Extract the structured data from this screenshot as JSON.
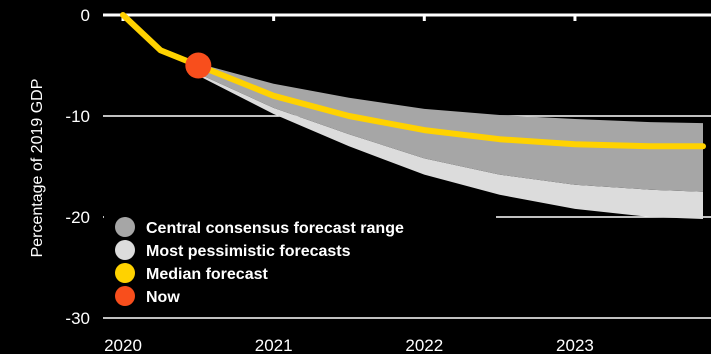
{
  "chart_data": {
    "type": "area",
    "ylabel": "Percentage of 2019 GDP",
    "ylim": [
      -30,
      0
    ],
    "y_ticks": [
      0,
      -10,
      -20,
      -30
    ],
    "xlim": [
      2020,
      2023.85
    ],
    "x_ticks": [
      2020,
      2021,
      2022,
      2023
    ],
    "x_tick_labels": [
      "2020",
      "2021",
      "2022",
      "2023"
    ],
    "grid": true,
    "legend_placement": "lower-left",
    "series": [
      {
        "name": "Central consensus forecast range",
        "color": "#a6a6a6",
        "x": [
          2020.5,
          2021,
          2021.5,
          2022,
          2022.5,
          2023,
          2023.5,
          2023.85
        ],
        "upper": [
          -4.8,
          -6.8,
          -8.2,
          -9.3,
          -9.9,
          -10.3,
          -10.6,
          -10.7
        ],
        "lower": [
          -5.8,
          -9.2,
          -11.8,
          -14.2,
          -15.8,
          -16.8,
          -17.3,
          -17.5
        ]
      },
      {
        "name": "Most pessimistic forecasts",
        "color": "#dcdcdc",
        "x": [
          2020.5,
          2021,
          2021.5,
          2022,
          2022.5,
          2023,
          2023.5,
          2023.85
        ],
        "upper": [
          -5.8,
          -9.2,
          -11.8,
          -14.2,
          -15.8,
          -16.8,
          -17.3,
          -17.5
        ],
        "lower": [
          -6.0,
          -9.8,
          -13.0,
          -15.8,
          -17.8,
          -19.2,
          -20.0,
          -20.2
        ]
      },
      {
        "name": "Median forecast",
        "color": "#ffd200",
        "x": [
          2020,
          2020.25,
          2020.5,
          2021,
          2021.5,
          2022,
          2022.5,
          2023,
          2023.5,
          2023.85
        ],
        "y": [
          0,
          -3.5,
          -5.0,
          -8.0,
          -10.0,
          -11.4,
          -12.3,
          -12.8,
          -13.0,
          -13.0
        ]
      },
      {
        "name": "Now",
        "color": "#f84e1c",
        "x": 2020.5,
        "y": -5.0
      }
    ]
  }
}
